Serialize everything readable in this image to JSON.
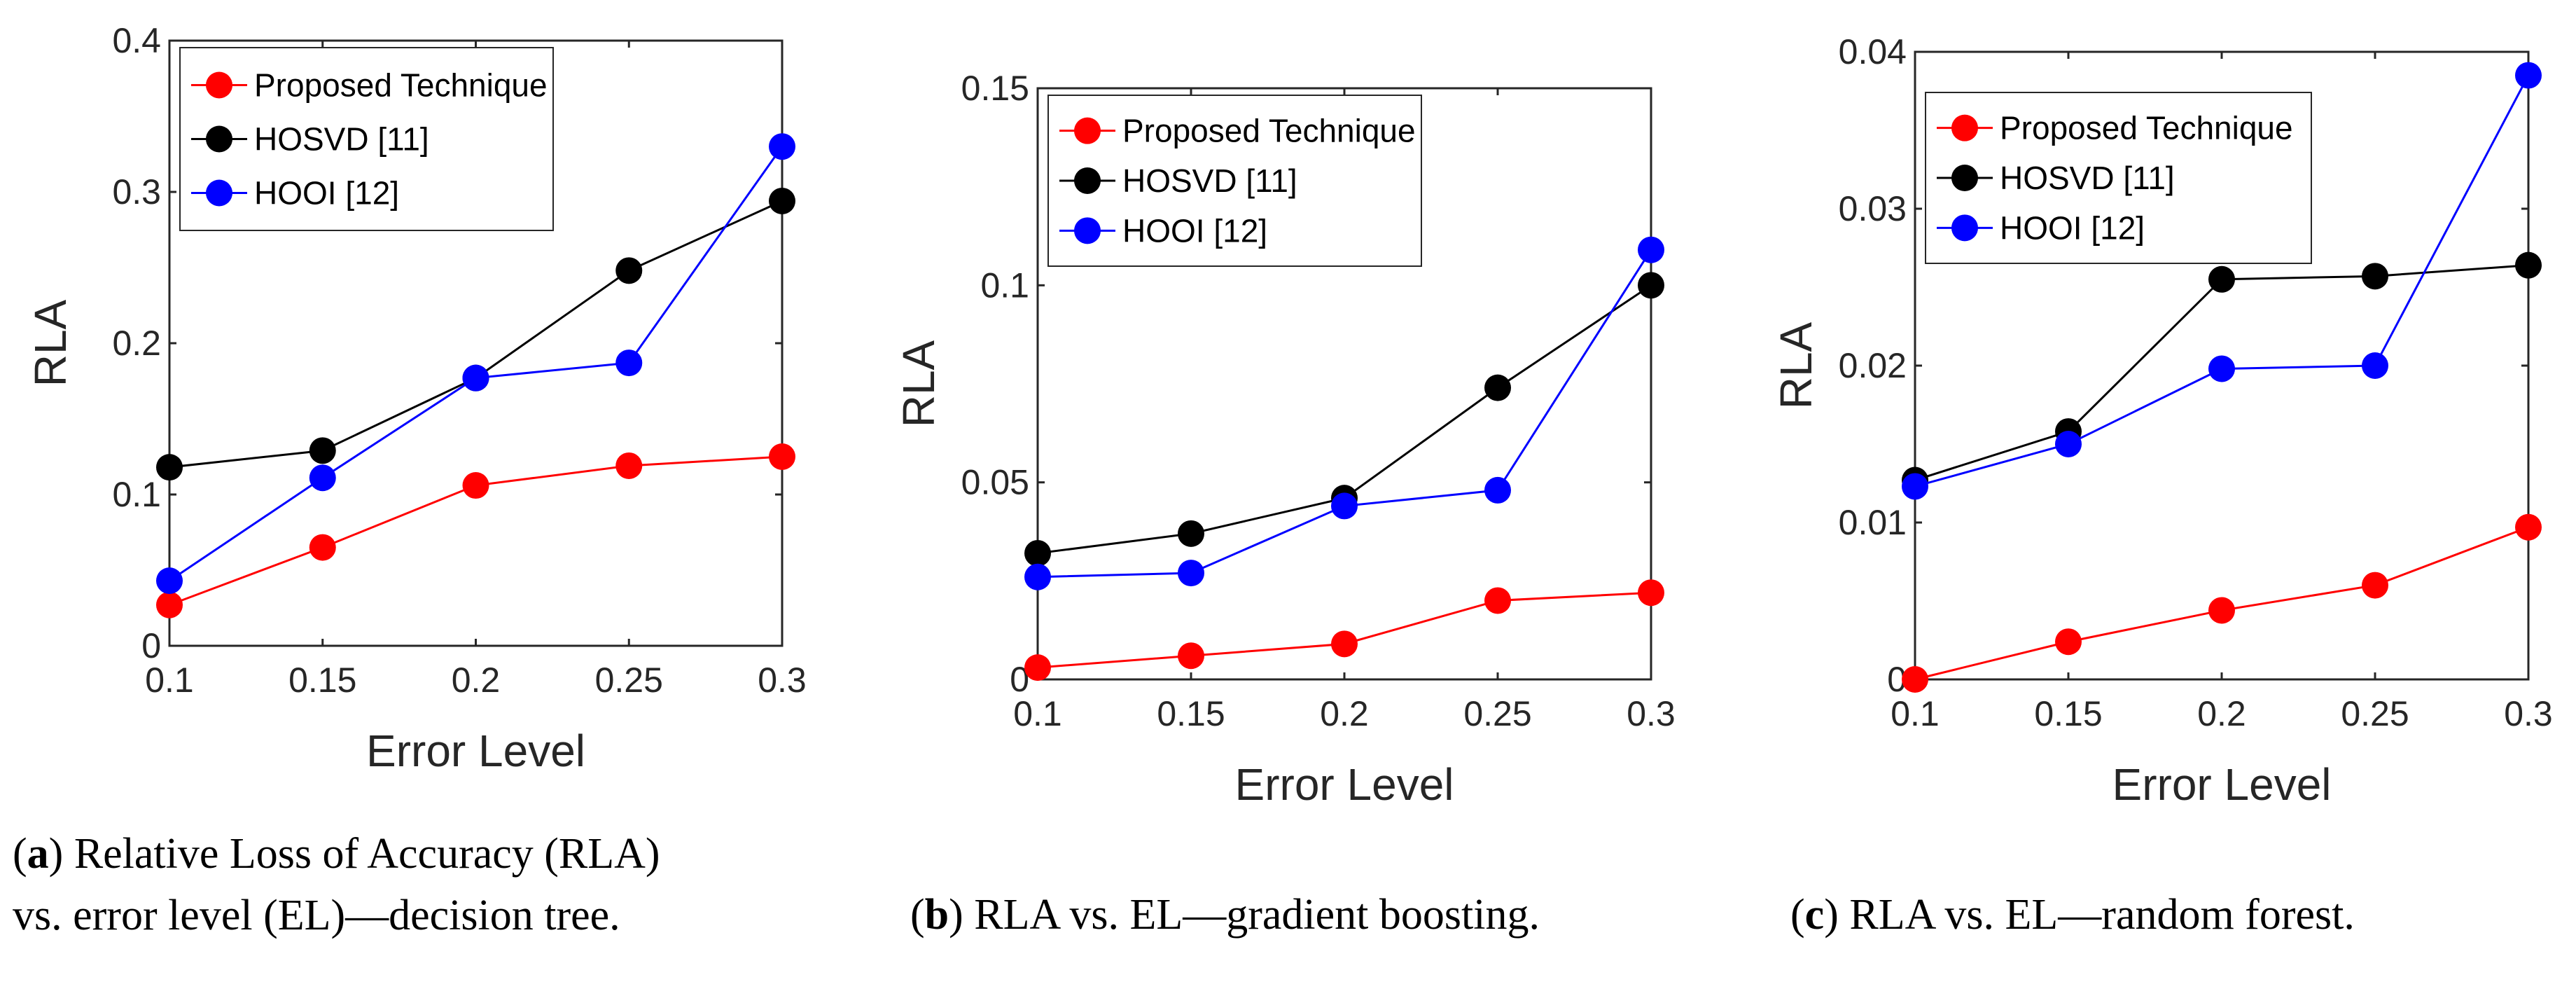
{
  "chart_data": [
    {
      "type": "line",
      "panel": "a",
      "xlabel": "Error Level",
      "ylabel": "RLA",
      "x": [
        0.1,
        0.15,
        0.2,
        0.25,
        0.3
      ],
      "x_tick_labels": [
        "0.1",
        "0.15",
        "0.2",
        "0.25",
        "0.3"
      ],
      "xlim": [
        0.1,
        0.3
      ],
      "ylim": [
        0,
        0.4
      ],
      "y_ticks": [
        0,
        0.1,
        0.2,
        0.3,
        0.4
      ],
      "y_tick_labels": [
        "0",
        "0.1",
        "0.2",
        "0.3",
        "0.4"
      ],
      "legend_position": "top-left",
      "series": [
        {
          "name": "Proposed Technique",
          "color": "#ff0000",
          "values": [
            0.027,
            0.065,
            0.106,
            0.119,
            0.125
          ]
        },
        {
          "name": "HOSVD [11]",
          "color": "#000000",
          "values": [
            0.118,
            0.129,
            0.177,
            0.248,
            0.294
          ]
        },
        {
          "name": "HOOI [12]",
          "color": "#0000ff",
          "values": [
            0.043,
            0.111,
            0.177,
            0.187,
            0.33
          ]
        }
      ]
    },
    {
      "type": "line",
      "panel": "b",
      "xlabel": "Error Level",
      "ylabel": "RLA",
      "x": [
        0.1,
        0.15,
        0.2,
        0.25,
        0.3
      ],
      "x_tick_labels": [
        "0.1",
        "0.15",
        "0.2",
        "0.25",
        "0.3"
      ],
      "xlim": [
        0.1,
        0.3
      ],
      "ylim": [
        0,
        0.15
      ],
      "y_ticks": [
        0,
        0.05,
        0.1,
        0.15
      ],
      "y_tick_labels": [
        "0",
        "0.05",
        "0.1",
        "0.15"
      ],
      "legend_position": "top-left",
      "series": [
        {
          "name": "Proposed Technique",
          "color": "#ff0000",
          "values": [
            0.003,
            0.006,
            0.009,
            0.02,
            0.022
          ]
        },
        {
          "name": "HOSVD [11]",
          "color": "#000000",
          "values": [
            0.032,
            0.037,
            0.046,
            0.074,
            0.1
          ]
        },
        {
          "name": "HOOI [12]",
          "color": "#0000ff",
          "values": [
            0.026,
            0.027,
            0.044,
            0.048,
            0.109
          ]
        }
      ]
    },
    {
      "type": "line",
      "panel": "c",
      "xlabel": "Error Level",
      "ylabel": "RLA",
      "x": [
        0.1,
        0.15,
        0.2,
        0.25,
        0.3
      ],
      "x_tick_labels": [
        "0.1",
        "0.15",
        "0.2",
        "0.25",
        "0.3"
      ],
      "xlim": [
        0.1,
        0.3
      ],
      "ylim": [
        0,
        0.04
      ],
      "y_ticks": [
        0,
        0.01,
        0.02,
        0.03,
        0.04
      ],
      "y_tick_labels": [
        "0",
        "0.01",
        "0.02",
        "0.03",
        "0.04"
      ],
      "legend_position": "top-left",
      "series": [
        {
          "name": "Proposed Technique",
          "color": "#ff0000",
          "values": [
            0.0,
            0.0024,
            0.0044,
            0.006,
            0.0097
          ]
        },
        {
          "name": "HOSVD [11]",
          "color": "#000000",
          "values": [
            0.0127,
            0.0158,
            0.0255,
            0.0257,
            0.0264
          ]
        },
        {
          "name": "HOOI [12]",
          "color": "#0000ff",
          "values": [
            0.0123,
            0.015,
            0.0198,
            0.02,
            0.0385
          ]
        }
      ]
    }
  ],
  "captions": [
    {
      "label": "a",
      "line1": " Relative Loss of Accuracy (RLA)",
      "line2": "vs. error level (EL)—decision tree."
    },
    {
      "label": "b",
      "line1": " RLA vs. EL—gradient boosting."
    },
    {
      "label": "c",
      "line1": " RLA vs. EL—random forest."
    }
  ]
}
